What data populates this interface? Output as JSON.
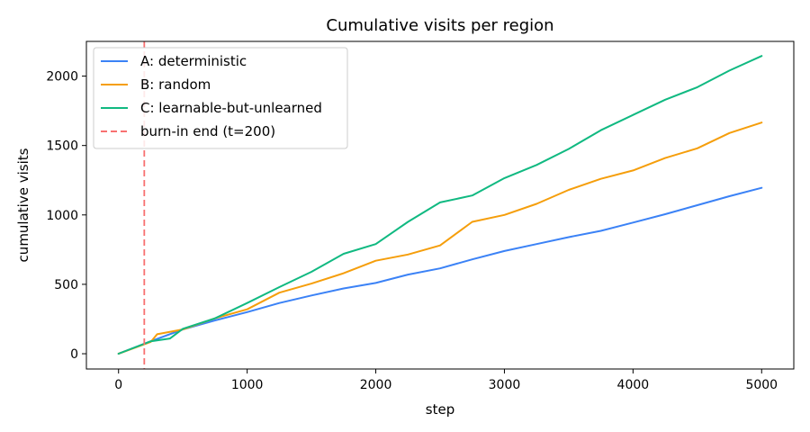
{
  "chart_data": {
    "type": "line",
    "title": "Cumulative visits per region",
    "xlabel": "step",
    "ylabel": "cumulative visits",
    "xlim": [
      -250,
      5250
    ],
    "ylim": [
      -110,
      2250
    ],
    "xticks": [
      0,
      1000,
      2000,
      3000,
      4000,
      5000
    ],
    "yticks": [
      0,
      500,
      1000,
      1500,
      2000
    ],
    "xtick_labels": [
      "0",
      "1000",
      "2000",
      "3000",
      "4000",
      "5000"
    ],
    "ytick_labels": [
      "0",
      "500",
      "1000",
      "1500",
      "2000"
    ],
    "grid": false,
    "legend_position": "top-left",
    "series": [
      {
        "name": "A: deterministic",
        "color": "#3b82f6",
        "x": [
          0,
          250,
          500,
          750,
          1000,
          1250,
          1500,
          1750,
          2000,
          2250,
          2500,
          2750,
          3000,
          3250,
          3500,
          3750,
          4000,
          4250,
          4500,
          4750,
          5000
        ],
        "values": [
          0,
          90,
          175,
          240,
          300,
          365,
          420,
          470,
          510,
          570,
          615,
          680,
          740,
          790,
          840,
          885,
          945,
          1005,
          1070,
          1135,
          1195
        ]
      },
      {
        "name": "B: random",
        "color": "#f59e0b",
        "x": [
          0,
          250,
          300,
          500,
          750,
          1000,
          1250,
          1500,
          1750,
          2000,
          2250,
          2500,
          2750,
          3000,
          3250,
          3500,
          3750,
          4000,
          4250,
          4500,
          4750,
          5000
        ],
        "values": [
          0,
          85,
          140,
          175,
          255,
          320,
          440,
          505,
          580,
          670,
          715,
          780,
          950,
          1000,
          1080,
          1180,
          1260,
          1320,
          1410,
          1480,
          1590,
          1665
        ]
      },
      {
        "name": "C: learnable-but-unlearned",
        "color": "#10b981",
        "x": [
          0,
          250,
          400,
          500,
          750,
          1000,
          1250,
          1500,
          1750,
          2000,
          2250,
          2500,
          2750,
          3000,
          3250,
          3500,
          3750,
          4000,
          4250,
          4500,
          4750,
          5000
        ],
        "values": [
          0,
          90,
          110,
          180,
          255,
          365,
          480,
          590,
          720,
          790,
          950,
          1090,
          1140,
          1265,
          1360,
          1475,
          1610,
          1720,
          1830,
          1920,
          2040,
          2145
        ]
      }
    ],
    "annotations": [
      {
        "name": "burn-in end (t=200)",
        "type": "vline",
        "x": 200,
        "color": "#f87171",
        "style": "dashed"
      }
    ]
  }
}
